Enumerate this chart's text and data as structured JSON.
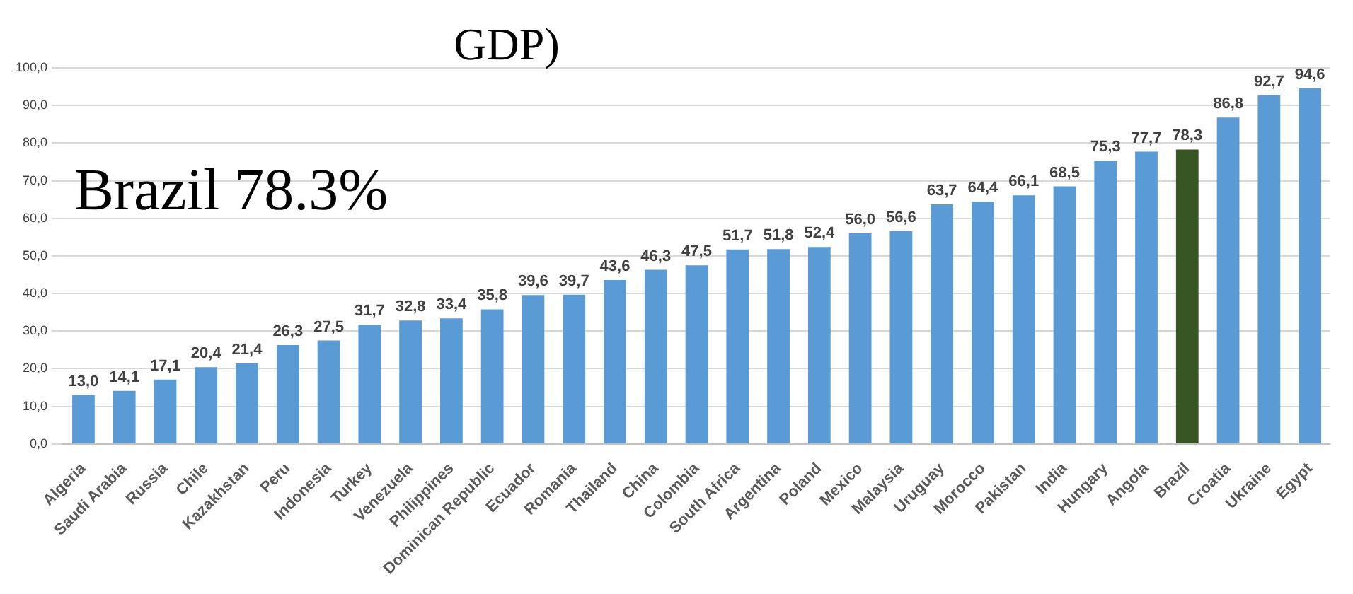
{
  "chart_data": {
    "type": "bar",
    "title": "GDP)",
    "annotations": [
      "Brazil 78.3%"
    ],
    "categories": [
      "Algeria",
      "Saudi Arabia",
      "Russia",
      "Chile",
      "Kazakhstan",
      "Peru",
      "Indonesia",
      "Turkey",
      "Venezuela",
      "Philippines",
      "Dominican Republic",
      "Ecuador",
      "Romania",
      "Thailand",
      "China",
      "Colombia",
      "South Africa",
      "Argentina",
      "Poland",
      "Mexico",
      "Malaysia",
      "Uruguay",
      "Morocco",
      "Pakistan",
      "India",
      "Hungary",
      "Angola",
      "Brazil",
      "Croatia",
      "Ukraine",
      "Egypt"
    ],
    "values": [
      13.0,
      14.1,
      17.1,
      20.4,
      21.4,
      26.3,
      27.5,
      31.7,
      32.8,
      33.4,
      35.8,
      39.6,
      39.7,
      43.6,
      46.3,
      47.5,
      51.7,
      51.8,
      52.4,
      56.0,
      56.6,
      63.7,
      64.4,
      66.1,
      68.5,
      75.3,
      77.7,
      78.3,
      86.8,
      92.7,
      94.6
    ],
    "value_labels": [
      "13,0",
      "14,1",
      "17,1",
      "20,4",
      "21,4",
      "26,3",
      "27,5",
      "31,7",
      "32,8",
      "33,4",
      "35,8",
      "39,6",
      "39,7",
      "43,6",
      "46,3",
      "47,5",
      "51,7",
      "51,8",
      "52,4",
      "56,0",
      "56,6",
      "63,7",
      "64,4",
      "66,1",
      "68,5",
      "75,3",
      "77,7",
      "78,3",
      "86,8",
      "92,7",
      "94,6"
    ],
    "colors": [
      "#5b9bd5",
      "#5b9bd5",
      "#5b9bd5",
      "#5b9bd5",
      "#5b9bd5",
      "#5b9bd5",
      "#5b9bd5",
      "#5b9bd5",
      "#5b9bd5",
      "#5b9bd5",
      "#5b9bd5",
      "#5b9bd5",
      "#5b9bd5",
      "#5b9bd5",
      "#5b9bd5",
      "#5b9bd5",
      "#5b9bd5",
      "#5b9bd5",
      "#5b9bd5",
      "#5b9bd5",
      "#5b9bd5",
      "#5b9bd5",
      "#5b9bd5",
      "#5b9bd5",
      "#5b9bd5",
      "#5b9bd5",
      "#5b9bd5",
      "#375623",
      "#5b9bd5",
      "#5b9bd5",
      "#5b9bd5"
    ],
    "ylim": [
      0,
      100
    ],
    "yticks": [
      {
        "value": 0,
        "label": "0,0"
      },
      {
        "value": 10,
        "label": "10,0"
      },
      {
        "value": 20,
        "label": "20,0"
      },
      {
        "value": 30,
        "label": "30,0"
      },
      {
        "value": 40,
        "label": "40,0"
      },
      {
        "value": 50,
        "label": "50,0"
      },
      {
        "value": 60,
        "label": "60,0"
      },
      {
        "value": 70,
        "label": "70,0"
      },
      {
        "value": 80,
        "label": "80,0"
      },
      {
        "value": 90,
        "label": "90,0"
      },
      {
        "value": 100,
        "label": "100,0"
      }
    ],
    "grid": "y",
    "legend": false
  }
}
